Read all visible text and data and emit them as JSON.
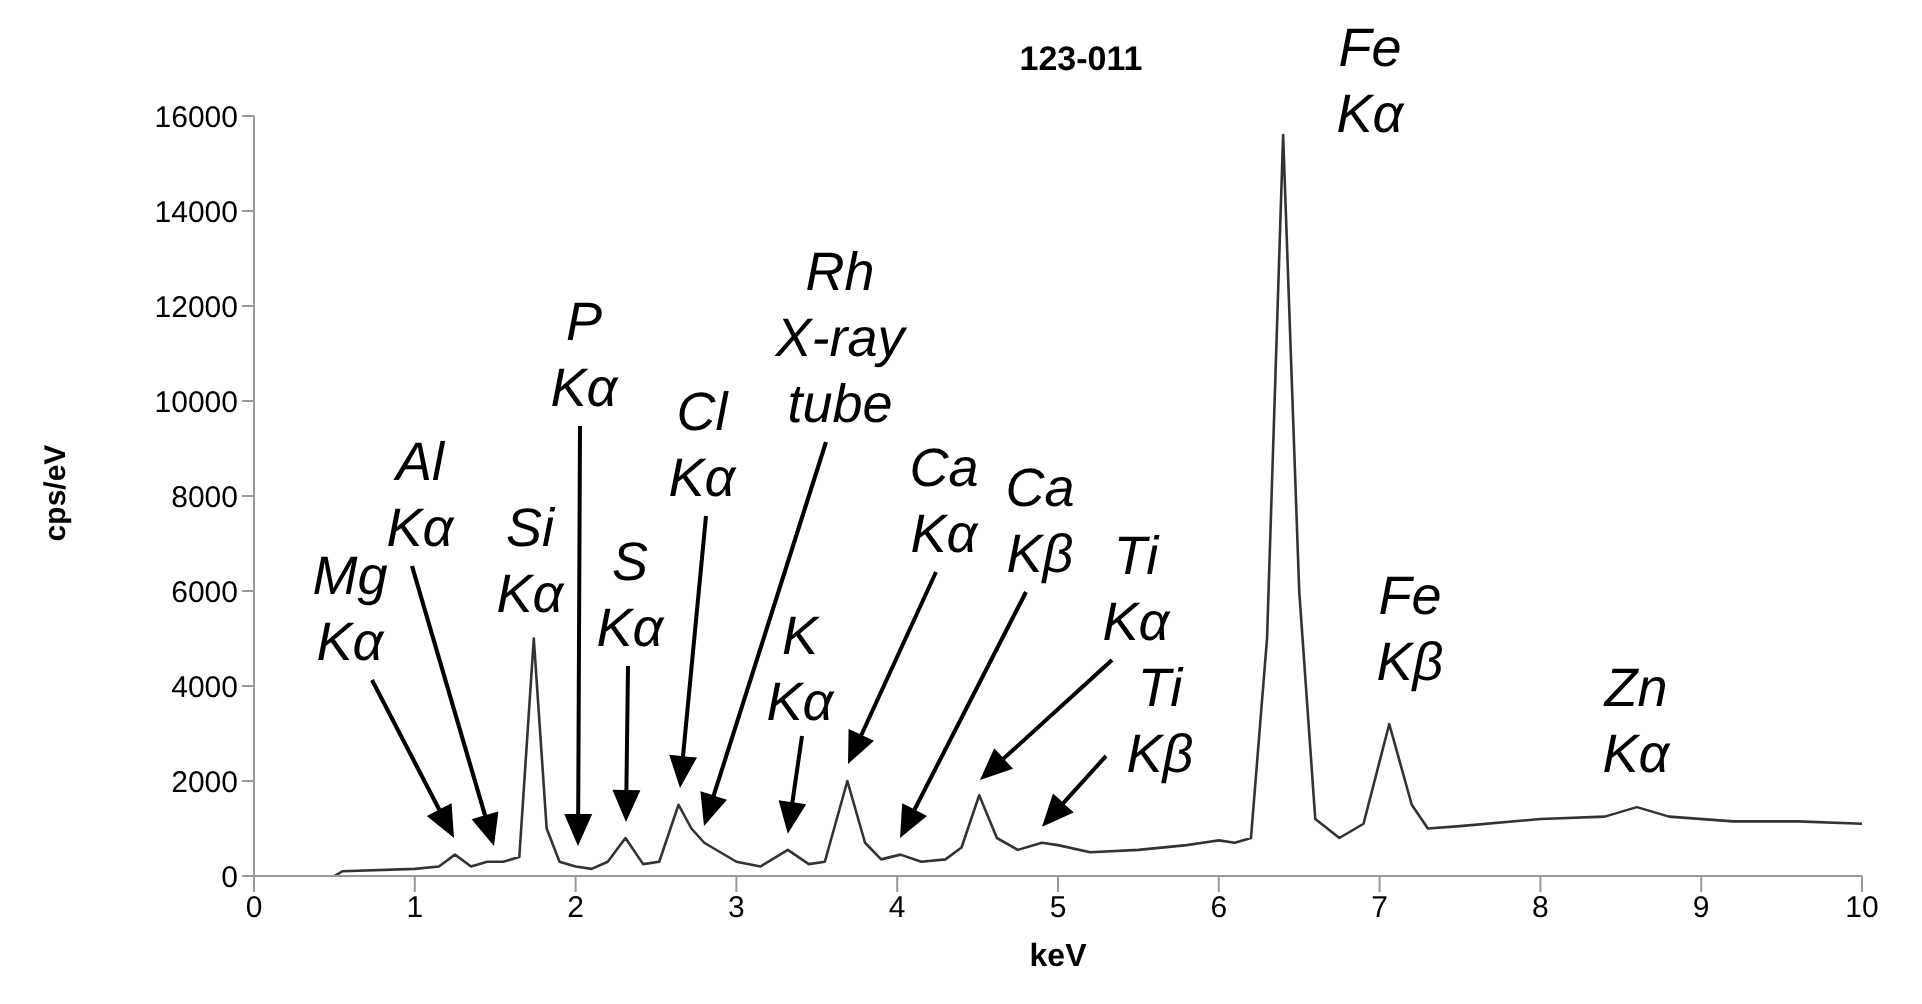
{
  "chart_data": {
    "type": "line",
    "title": "123-011",
    "xlabel": "keV",
    "ylabel": "cps/eV",
    "xlim": [
      0,
      10
    ],
    "xticks": [
      0,
      1,
      2,
      3,
      4,
      5,
      6,
      7,
      8,
      9,
      10
    ],
    "ylim": [
      0,
      16000
    ],
    "yticks": [
      0,
      2000,
      4000,
      6000,
      8000,
      10000,
      12000,
      14000,
      16000
    ],
    "series": [
      {
        "color": "#333333",
        "x": [
          0.5,
          0.55,
          1.0,
          1.15,
          1.25,
          1.35,
          1.45,
          1.55,
          1.65,
          1.74,
          1.82,
          1.9,
          2.0,
          2.1,
          2.2,
          2.31,
          2.42,
          2.52,
          2.64,
          2.72,
          2.8,
          2.9,
          3.0,
          3.15,
          3.32,
          3.45,
          3.55,
          3.69,
          3.8,
          3.9,
          4.02,
          4.15,
          4.3,
          4.4,
          4.51,
          4.62,
          4.75,
          4.9,
          5.0,
          5.2,
          5.5,
          5.8,
          5.9,
          6.0,
          6.1,
          6.2,
          6.3,
          6.4,
          6.5,
          6.6,
          6.75,
          6.9,
          7.06,
          7.2,
          7.3,
          7.5,
          8.0,
          8.4,
          8.6,
          8.8,
          9.2,
          9.6,
          10.0
        ],
        "values": [
          0,
          100,
          150,
          200,
          450,
          200,
          300,
          300,
          400,
          5000,
          1000,
          300,
          200,
          150,
          300,
          800,
          250,
          300,
          1500,
          1000,
          700,
          500,
          300,
          200,
          550,
          250,
          300,
          2000,
          700,
          350,
          450,
          300,
          350,
          600,
          1700,
          800,
          550,
          700,
          650,
          500,
          550,
          650,
          700,
          750,
          700,
          800,
          5000,
          15600,
          6000,
          1200,
          800,
          1100,
          3200,
          1500,
          1000,
          1050,
          1200,
          1250,
          1450,
          1250,
          1150,
          1150,
          1100
        ]
      }
    ],
    "annotations": [
      "Mg\nKα",
      "Al\nKα",
      {
        "text": "Si\nKα",
        "x": 1.74,
        "y": 5000
      },
      "P\nKα",
      "S\nKα",
      "Cl\nKα",
      "Rh\nX-ray\ntube",
      {
        "text": "K\nKα",
        "x": 3.32,
        "y": 550
      },
      "Ca\nKα",
      "Ca\nKβ",
      "Ti\nKα",
      {
        "text": "Ti\nKβ",
        "x": 4.9,
        "y": 700
      },
      {
        "text": "Fe\nKα",
        "x": 6.4,
        "y": 15600
      },
      {
        "text": "Fe\nKβ",
        "x": 7.06,
        "y": 3200
      },
      {
        "text": "Zn\nKα",
        "x": 8.6,
        "y": 1450
      }
    ]
  }
}
